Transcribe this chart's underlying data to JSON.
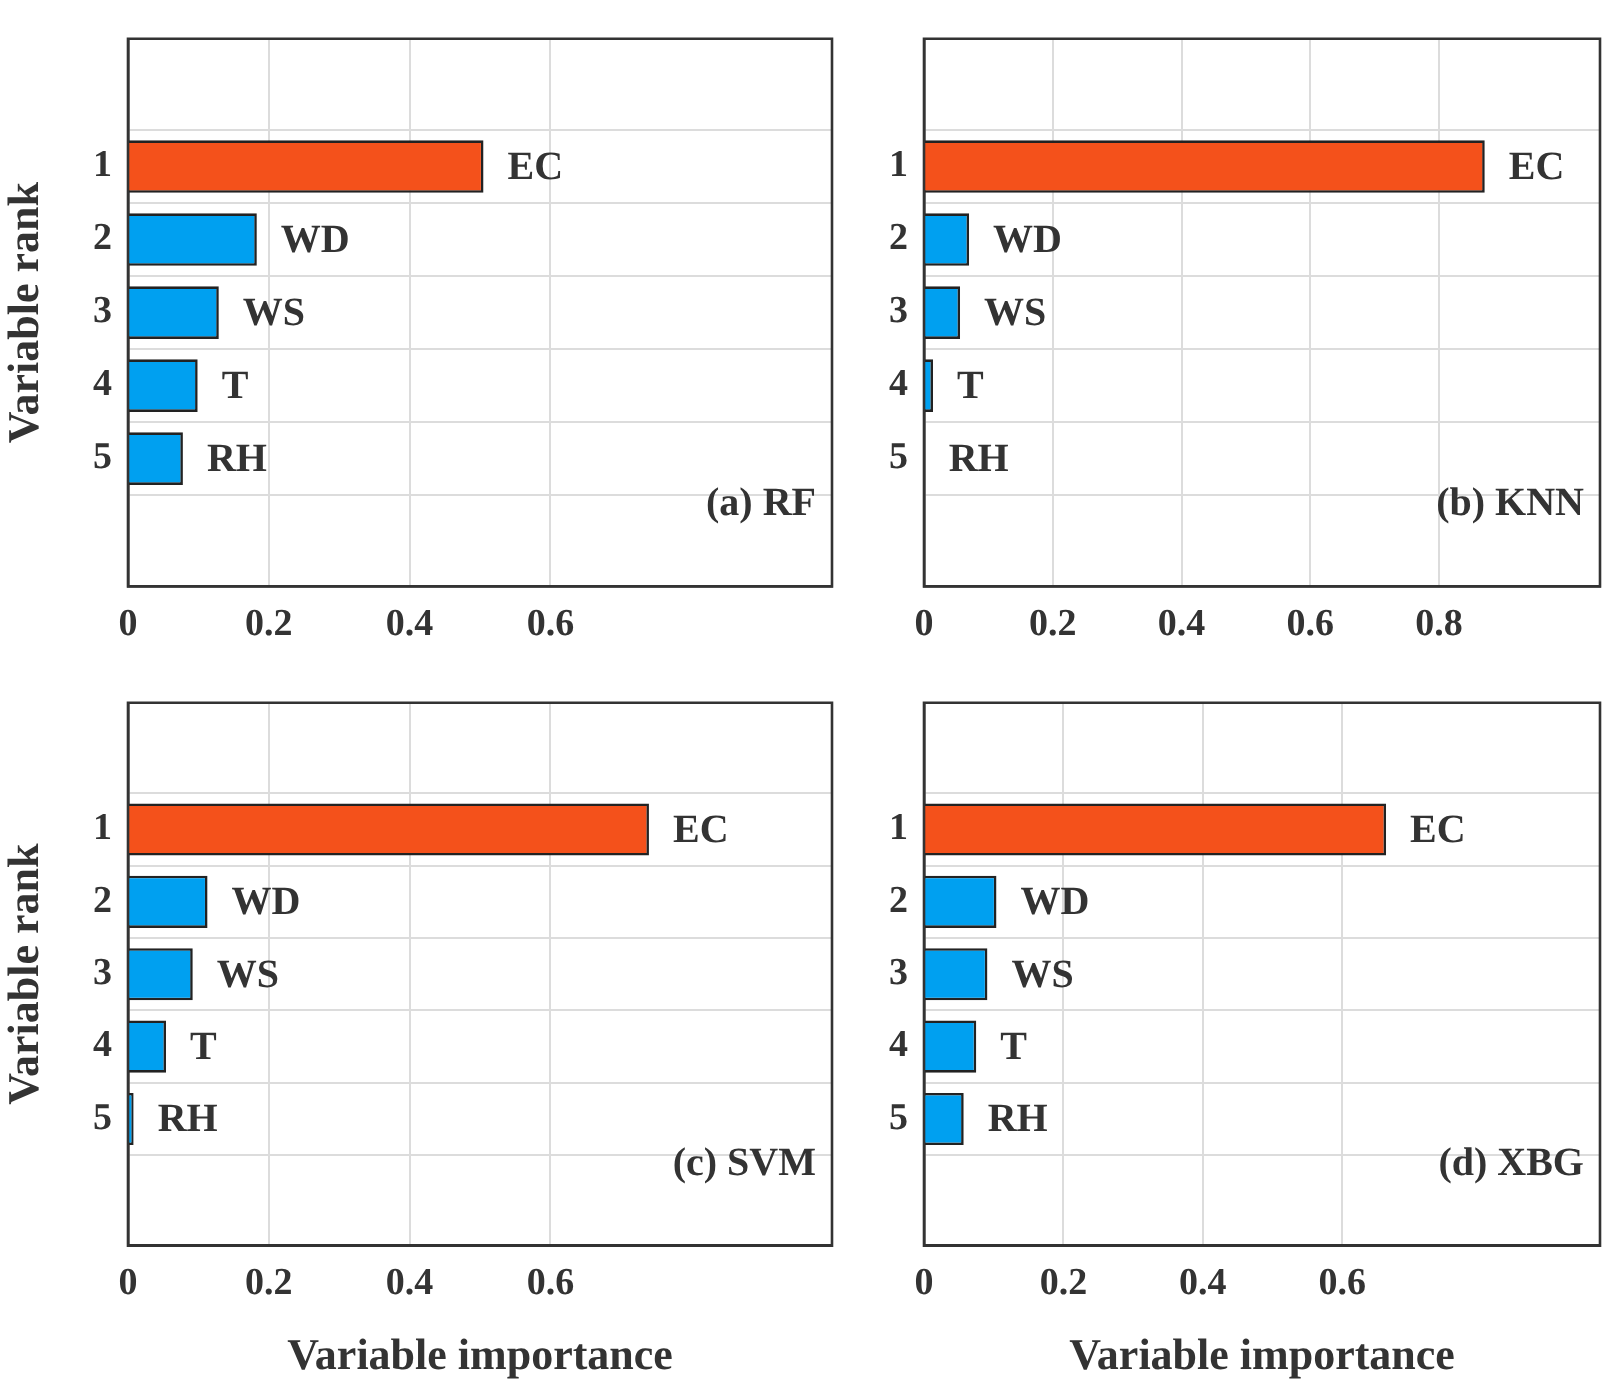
{
  "chart_data": [
    {
      "type": "bar",
      "orientation": "horizontal",
      "ylabel": "Variable rank",
      "categories": [
        "1",
        "2",
        "3",
        "4",
        "5"
      ],
      "values": [
        0.505,
        0.183,
        0.129,
        0.099,
        0.078
      ],
      "colors": [
        "#f4511b",
        "#00a0f0",
        "#00a0f0",
        "#00a0f0",
        "#00a0f0"
      ],
      "value_labels": [
        "EC",
        "WD",
        "WS",
        "T",
        "RH"
      ],
      "xlim": [
        0,
        1
      ],
      "xticks": [
        0,
        0.2,
        0.4,
        0.6
      ],
      "grid": true,
      "annotations": [
        "(a) RF"
      ]
    },
    {
      "type": "bar",
      "orientation": "horizontal",
      "categories": [
        "1",
        "2",
        "3",
        "4",
        "5"
      ],
      "values": [
        0.871,
        0.07,
        0.056,
        0.014,
        0.001
      ],
      "colors": [
        "#f4511b",
        "#00a0f0",
        "#00a0f0",
        "#00a0f0",
        "#00a0f0"
      ],
      "value_labels": [
        "EC",
        "WD",
        "WS",
        "T",
        "RH"
      ],
      "xlim": [
        0,
        1.05
      ],
      "xticks": [
        0,
        0.2,
        0.4,
        0.6,
        0.8
      ],
      "grid": true,
      "annotations": [
        "(b) KNN"
      ]
    },
    {
      "type": "bar",
      "orientation": "horizontal",
      "xlabel": "Variable importance",
      "ylabel": "Variable rank",
      "categories": [
        "1",
        "2",
        "3",
        "4",
        "5"
      ],
      "values": [
        0.74,
        0.113,
        0.092,
        0.054,
        0.008
      ],
      "colors": [
        "#f4511b",
        "#00a0f0",
        "#00a0f0",
        "#00a0f0",
        "#00a0f0"
      ],
      "value_labels": [
        "EC",
        "WD",
        "WS",
        "T",
        "RH"
      ],
      "xlim": [
        0,
        1
      ],
      "xticks": [
        0,
        0.2,
        0.4,
        0.6
      ],
      "grid": true,
      "annotations": [
        "(c) SVM"
      ]
    },
    {
      "type": "bar",
      "orientation": "horizontal",
      "xlabel": "Variable importance",
      "categories": [
        "1",
        "2",
        "3",
        "4",
        "5"
      ],
      "values": [
        0.663,
        0.104,
        0.091,
        0.075,
        0.057
      ],
      "colors": [
        "#f4511b",
        "#00a0f0",
        "#00a0f0",
        "#00a0f0",
        "#00a0f0"
      ],
      "value_labels": [
        "EC",
        "WD",
        "WS",
        "T",
        "RH"
      ],
      "xlim": [
        0,
        0.97
      ],
      "xticks": [
        0,
        0.2,
        0.4,
        0.6
      ],
      "grid": true,
      "annotations": [
        "(d) XBG"
      ]
    }
  ]
}
